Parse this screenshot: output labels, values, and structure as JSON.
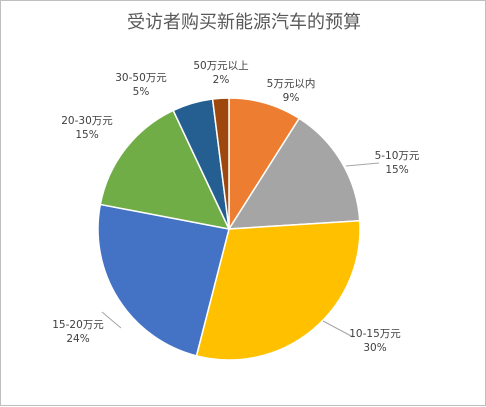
{
  "chart_data": {
    "type": "pie",
    "title": "受访者购买新能源汽车的预算",
    "categories": [
      "5万元以内",
      "5-10万元",
      "10-15万元",
      "15-20万元",
      "20-30万元",
      "30-50万元",
      "50万元以上"
    ],
    "values": [
      9,
      15,
      30,
      24,
      15,
      5,
      2
    ],
    "value_labels": [
      "9%",
      "15%",
      "30%",
      "24%",
      "15%",
      "5%",
      "2%"
    ],
    "colors": [
      "#ED7D31",
      "#A5A5A5",
      "#FFC000",
      "#4472C4",
      "#70AD47",
      "#255E91",
      "#9E480E"
    ],
    "start_angle": "12 o'clock",
    "direction": "clockwise",
    "legend": "none",
    "data_labels": "outside with leader lines"
  }
}
